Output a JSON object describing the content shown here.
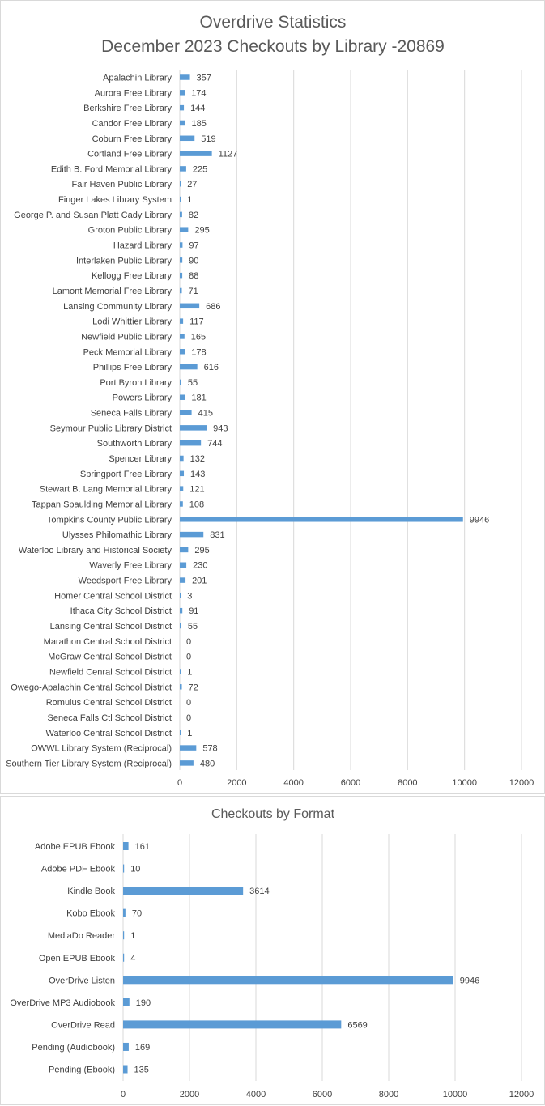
{
  "chart_data": [
    {
      "type": "bar",
      "orientation": "horizontal",
      "title": "Overdrive Statistics",
      "subtitle": "December 2023 Checkouts by Library -20869",
      "xlim": [
        0,
        12000
      ],
      "x_ticks": [
        "0",
        "2000",
        "4000",
        "6000",
        "8000",
        "10000",
        "12000"
      ],
      "grid": "vertical",
      "bar_color": "#5b9bd5",
      "categories": [
        "Apalachin Library",
        "Aurora Free Library",
        "Berkshire Free Library",
        "Candor Free Library",
        "Coburn Free Library",
        "Cortland Free Library",
        "Edith B. Ford Memorial Library",
        "Fair Haven Public Library",
        "Finger Lakes Library System",
        "George P. and Susan Platt Cady Library",
        "Groton Public Library",
        "Hazard Library",
        "Interlaken Public Library",
        "Kellogg Free Library",
        "Lamont Memorial Free Library",
        "Lansing Community Library",
        "Lodi Whittier Library",
        "Newfield Public Library",
        "Peck Memorial Library",
        "Phillips Free Library",
        "Port Byron Library",
        "Powers Library",
        "Seneca Falls Library",
        "Seymour Public Library District",
        "Southworth Library",
        "Spencer Library",
        "Springport Free Library",
        "Stewart B. Lang Memorial Library",
        "Tappan Spaulding Memorial Library",
        "Tompkins County Public Library",
        "Ulysses Philomathic Library",
        "Waterloo Library and Historical Society",
        "Waverly Free Library",
        "Weedsport Free Library",
        "Homer Central School District",
        "Ithaca City School District",
        "Lansing Central School District",
        "Marathon Central School District",
        "McGraw Central School District",
        "Newfield Cenral School District",
        "Owego-Apalachin Central School District",
        "Romulus Central School District",
        "Seneca Falls Ctl School District",
        "Waterloo Central School District",
        "OWWL Library System (Reciprocal)",
        "Southern Tier Library System (Reciprocal)"
      ],
      "values": [
        357,
        174,
        144,
        185,
        519,
        1127,
        225,
        27,
        1,
        82,
        295,
        97,
        90,
        88,
        71,
        686,
        117,
        165,
        178,
        616,
        55,
        181,
        415,
        943,
        744,
        132,
        143,
        121,
        108,
        9946,
        831,
        295,
        230,
        201,
        3,
        91,
        55,
        0,
        0,
        1,
        72,
        0,
        0,
        1,
        578,
        480
      ]
    },
    {
      "type": "bar",
      "orientation": "horizontal",
      "title": "Checkouts by Format",
      "xlim": [
        0,
        12000
      ],
      "x_ticks": [
        "0",
        "2000",
        "4000",
        "6000",
        "8000",
        "10000",
        "12000"
      ],
      "grid": "vertical",
      "bar_color": "#5b9bd5",
      "categories": [
        "Adobe EPUB Ebook",
        "Adobe PDF Ebook",
        "Kindle Book",
        "Kobo Ebook",
        "MediaDo Reader",
        "Open EPUB Ebook",
        "OverDrive Listen",
        "OverDrive MP3 Audiobook",
        "OverDrive Read",
        "Pending (Audiobook)",
        "Pending (Ebook)"
      ],
      "values": [
        161,
        10,
        3614,
        70,
        1,
        4,
        9946,
        190,
        6569,
        169,
        135
      ]
    }
  ]
}
